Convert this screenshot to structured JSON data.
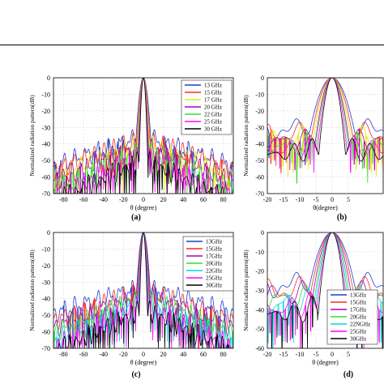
{
  "panels": [
    {
      "id": "a",
      "caption": "(a)",
      "chart_data": {
        "type": "line",
        "title": "",
        "xlabel": "θ (degree)",
        "ylabel": "Normalized radiation pattern(dB)",
        "xlim": [
          -90,
          90
        ],
        "ylim": [
          -70,
          0
        ],
        "xticks": [
          -80,
          -60,
          -40,
          -20,
          0,
          20,
          40,
          60,
          80
        ],
        "yticks": [
          0,
          -10,
          -20,
          -30,
          -40,
          -50,
          -60,
          -70
        ],
        "grid": true,
        "legend_position": "top-right",
        "series": [
          {
            "name": "13 GHz",
            "color": "#1f3fcf",
            "beamwidth": 4.2,
            "floor": -36,
            "drop": 3.5,
            "nulls": 4
          },
          {
            "name": "15 GHz",
            "color": "#ff2a1f",
            "beamwidth": 3.7,
            "floor": -38,
            "drop": 3.5,
            "nulls": 4
          },
          {
            "name": "17 GHz",
            "color": "#e8e800",
            "beamwidth": 3.3,
            "floor": -40,
            "drop": 4,
            "nulls": 5
          },
          {
            "name": "20 GHz",
            "color": "#b000b0",
            "beamwidth": 2.9,
            "floor": -42,
            "drop": 4,
            "nulls": 5
          },
          {
            "name": "22 GHz",
            "color": "#2ee02e",
            "beamwidth": 2.7,
            "floor": -44,
            "drop": 4.5,
            "nulls": 6
          },
          {
            "name": "25 GHz",
            "color": "#ff00ff",
            "beamwidth": 2.4,
            "floor": -47,
            "drop": 5,
            "nulls": 7
          },
          {
            "name": "30 GHz",
            "color": "#000000",
            "beamwidth": 2.1,
            "floor": -50,
            "drop": 5,
            "nulls": 9
          }
        ]
      }
    },
    {
      "id": "b",
      "caption": "(b)",
      "chart_data": {
        "type": "line",
        "title": "",
        "xlabel": "θ(degree)",
        "ylabel": "Normalized radiation pattern(dB)",
        "xlim": [
          -20,
          20
        ],
        "ylim": [
          -70,
          0
        ],
        "xticks": [
          -20,
          -15,
          -10,
          -5,
          0,
          5
        ],
        "yticks": [
          0,
          -10,
          -20,
          -30,
          -40,
          -50,
          -60,
          -70
        ],
        "grid": true,
        "legend_position": "none",
        "series": [
          {
            "name": "13 GHz",
            "color": "#1f3fcf",
            "beamwidth": 4.2,
            "floor": -28,
            "drop": 2,
            "nulls": 2
          },
          {
            "name": "15 GHz",
            "color": "#ff2a1f",
            "beamwidth": 3.7,
            "floor": -30,
            "drop": 2.5,
            "nulls": 2
          },
          {
            "name": "17 GHz",
            "color": "#e8e800",
            "beamwidth": 3.3,
            "floor": -32,
            "drop": 3,
            "nulls": 3
          },
          {
            "name": "20 GHz",
            "color": "#b000b0",
            "beamwidth": 2.9,
            "floor": -34,
            "drop": 3,
            "nulls": 3
          },
          {
            "name": "22 GHz",
            "color": "#2ee02e",
            "beamwidth": 2.7,
            "floor": -36,
            "drop": 3.5,
            "nulls": 4
          },
          {
            "name": "25 GHz",
            "color": "#ff00ff",
            "beamwidth": 2.4,
            "floor": -38,
            "drop": 4,
            "nulls": 4
          },
          {
            "name": "30 GHz",
            "color": "#000000",
            "beamwidth": 2.1,
            "floor": -40,
            "drop": 5,
            "nulls": 5
          }
        ]
      }
    },
    {
      "id": "c",
      "caption": "(c)",
      "chart_data": {
        "type": "line",
        "title": "",
        "xlabel": "θ (degree)",
        "ylabel": "Normalized radiation pattern(dB)",
        "xlim": [
          -90,
          90
        ],
        "ylim": [
          -70,
          0
        ],
        "xticks": [
          -80,
          -60,
          -40,
          -20,
          0,
          20,
          40,
          60,
          80
        ],
        "yticks": [
          0,
          -10,
          -20,
          -30,
          -40,
          -50,
          -60,
          -70
        ],
        "grid": true,
        "legend_position": "right",
        "series": [
          {
            "name": "13GHz",
            "color": "#1f3fcf",
            "beamwidth": 4.0,
            "floor": -33,
            "drop": 3,
            "nulls": 3
          },
          {
            "name": "15GHz",
            "color": "#ff2a1f",
            "beamwidth": 3.6,
            "floor": -35,
            "drop": 3.5,
            "nulls": 4
          },
          {
            "name": "17GHz",
            "color": "#b000b0",
            "beamwidth": 3.2,
            "floor": -37,
            "drop": 4,
            "nulls": 5
          },
          {
            "name": "20GHz",
            "color": "#2ee02e",
            "beamwidth": 2.8,
            "floor": -39,
            "drop": 4,
            "nulls": 5
          },
          {
            "name": "22GHz",
            "color": "#00d8d8",
            "beamwidth": 2.6,
            "floor": -41,
            "drop": 4.5,
            "nulls": 6
          },
          {
            "name": "25GHz",
            "color": "#ff00ff",
            "beamwidth": 2.3,
            "floor": -43,
            "drop": 5,
            "nulls": 7
          },
          {
            "name": "30GHz",
            "color": "#000000",
            "beamwidth": 2.0,
            "floor": -46,
            "drop": 5,
            "nulls": 9
          }
        ]
      }
    },
    {
      "id": "d",
      "caption": "(d)",
      "chart_data": {
        "type": "line",
        "title": "",
        "xlabel": "θ (degree)",
        "ylabel": "Normalized radiation pattern(dB)",
        "xlim": [
          -20,
          20
        ],
        "ylim": [
          -60,
          0
        ],
        "xticks": [
          -20,
          -15,
          -10,
          -5,
          0,
          5
        ],
        "yticks": [
          0,
          -10,
          -20,
          -30,
          -40,
          -50,
          -60
        ],
        "grid": true,
        "legend_position": "bottom-right",
        "series": [
          {
            "name": "13GHz",
            "color": "#1f3fcf",
            "beamwidth": 4.6,
            "floor": -27,
            "drop": 2,
            "nulls": 2
          },
          {
            "name": "15GHz",
            "color": "#ff2a1f",
            "beamwidth": 4.1,
            "floor": -29,
            "drop": 2.5,
            "nulls": 2
          },
          {
            "name": "17GHz",
            "color": "#b000b0",
            "beamwidth": 3.6,
            "floor": -31,
            "drop": 3,
            "nulls": 3
          },
          {
            "name": "20GHz",
            "color": "#2ee02e",
            "beamwidth": 3.2,
            "floor": -33,
            "drop": 3,
            "nulls": 3
          },
          {
            "name": "22NGHz",
            "color": "#00d8d8",
            "beamwidth": 2.9,
            "floor": -35,
            "drop": 3.5,
            "nulls": 4
          },
          {
            "name": "25GHz",
            "color": "#ff00ff",
            "beamwidth": 2.6,
            "floor": -37,
            "drop": 4,
            "nulls": 4
          },
          {
            "name": "30GHz",
            "color": "#000000",
            "beamwidth": 2.3,
            "floor": -39,
            "drop": 5,
            "nulls": 5
          }
        ]
      }
    }
  ]
}
